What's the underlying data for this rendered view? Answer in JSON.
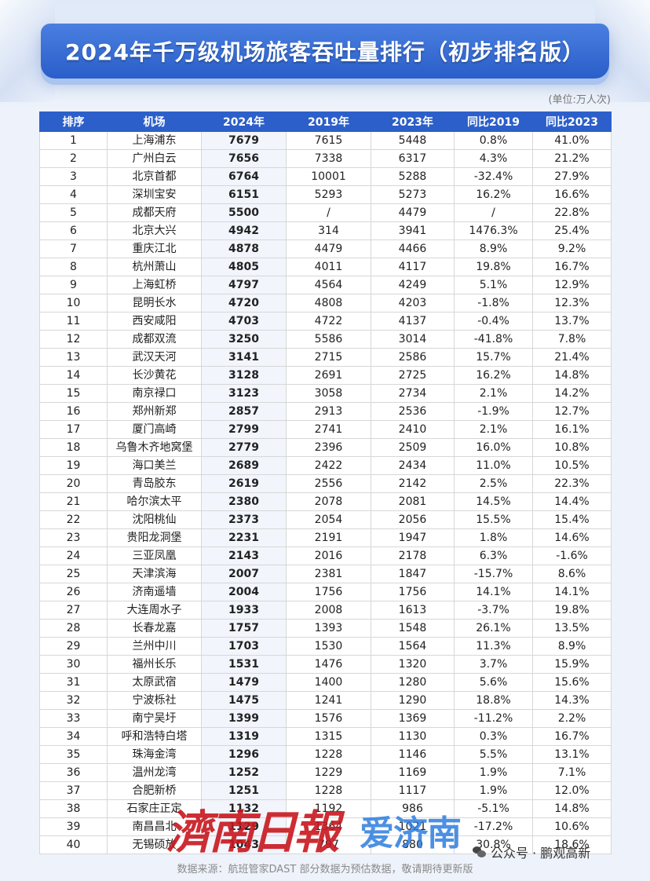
{
  "title": "2024年千万级机场旅客吞吐量排行（初步排名版）",
  "unit": "(单位:万人次)",
  "headers": [
    "排序",
    "机场",
    "2024年",
    "2019年",
    "2023年",
    "同比2019",
    "同比2023"
  ],
  "rows": [
    [
      "1",
      "上海浦东",
      "7679",
      "7615",
      "5448",
      "0.8%",
      "41.0%"
    ],
    [
      "2",
      "广州白云",
      "7656",
      "7338",
      "6317",
      "4.3%",
      "21.2%"
    ],
    [
      "3",
      "北京首都",
      "6764",
      "10001",
      "5288",
      "-32.4%",
      "27.9%"
    ],
    [
      "4",
      "深圳宝安",
      "6151",
      "5293",
      "5273",
      "16.2%",
      "16.6%"
    ],
    [
      "5",
      "成都天府",
      "5500",
      "/",
      "4479",
      "/",
      "22.8%"
    ],
    [
      "6",
      "北京大兴",
      "4942",
      "314",
      "3941",
      "1476.3%",
      "25.4%"
    ],
    [
      "7",
      "重庆江北",
      "4878",
      "4479",
      "4466",
      "8.9%",
      "9.2%"
    ],
    [
      "8",
      "杭州萧山",
      "4805",
      "4011",
      "4117",
      "19.8%",
      "16.7%"
    ],
    [
      "9",
      "上海虹桥",
      "4797",
      "4564",
      "4249",
      "5.1%",
      "12.9%"
    ],
    [
      "10",
      "昆明长水",
      "4720",
      "4808",
      "4203",
      "-1.8%",
      "12.3%"
    ],
    [
      "11",
      "西安咸阳",
      "4703",
      "4722",
      "4137",
      "-0.4%",
      "13.7%"
    ],
    [
      "12",
      "成都双流",
      "3250",
      "5586",
      "3014",
      "-41.8%",
      "7.8%"
    ],
    [
      "13",
      "武汉天河",
      "3141",
      "2715",
      "2586",
      "15.7%",
      "21.4%"
    ],
    [
      "14",
      "长沙黄花",
      "3128",
      "2691",
      "2725",
      "16.2%",
      "14.8%"
    ],
    [
      "15",
      "南京禄口",
      "3123",
      "3058",
      "2734",
      "2.1%",
      "14.2%"
    ],
    [
      "16",
      "郑州新郑",
      "2857",
      "2913",
      "2536",
      "-1.9%",
      "12.7%"
    ],
    [
      "17",
      "厦门高崎",
      "2799",
      "2741",
      "2410",
      "2.1%",
      "16.1%"
    ],
    [
      "18",
      "乌鲁木齐地窝堡",
      "2779",
      "2396",
      "2509",
      "16.0%",
      "10.8%"
    ],
    [
      "19",
      "海口美兰",
      "2689",
      "2422",
      "2434",
      "11.0%",
      "10.5%"
    ],
    [
      "20",
      "青岛胶东",
      "2619",
      "2556",
      "2142",
      "2.5%",
      "22.3%"
    ],
    [
      "21",
      "哈尔滨太平",
      "2380",
      "2078",
      "2081",
      "14.5%",
      "14.4%"
    ],
    [
      "22",
      "沈阳桃仙",
      "2373",
      "2054",
      "2056",
      "15.5%",
      "15.4%"
    ],
    [
      "23",
      "贵阳龙洞堡",
      "2231",
      "2191",
      "1947",
      "1.8%",
      "14.6%"
    ],
    [
      "24",
      "三亚凤凰",
      "2143",
      "2016",
      "2178",
      "6.3%",
      "-1.6%"
    ],
    [
      "25",
      "天津滨海",
      "2007",
      "2381",
      "1847",
      "-15.7%",
      "8.6%"
    ],
    [
      "26",
      "济南遥墙",
      "2004",
      "1756",
      "1756",
      "14.1%",
      "14.1%"
    ],
    [
      "27",
      "大连周水子",
      "1933",
      "2008",
      "1613",
      "-3.7%",
      "19.8%"
    ],
    [
      "28",
      "长春龙嘉",
      "1757",
      "1393",
      "1548",
      "26.1%",
      "13.5%"
    ],
    [
      "29",
      "兰州中川",
      "1703",
      "1530",
      "1564",
      "11.3%",
      "8.9%"
    ],
    [
      "30",
      "福州长乐",
      "1531",
      "1476",
      "1320",
      "3.7%",
      "15.9%"
    ],
    [
      "31",
      "太原武宿",
      "1479",
      "1400",
      "1280",
      "5.6%",
      "15.6%"
    ],
    [
      "32",
      "宁波栎社",
      "1475",
      "1241",
      "1290",
      "18.8%",
      "14.3%"
    ],
    [
      "33",
      "南宁吴圩",
      "1399",
      "1576",
      "1369",
      "-11.2%",
      "2.2%"
    ],
    [
      "34",
      "呼和浩特白塔",
      "1319",
      "1315",
      "1130",
      "0.3%",
      "16.7%"
    ],
    [
      "35",
      "珠海金湾",
      "1296",
      "1228",
      "1146",
      "5.5%",
      "13.1%"
    ],
    [
      "36",
      "温州龙湾",
      "1252",
      "1229",
      "1169",
      "1.9%",
      "7.1%"
    ],
    [
      "37",
      "合肥新桥",
      "1251",
      "1228",
      "1117",
      "1.9%",
      "12.0%"
    ],
    [
      "38",
      "石家庄正定",
      "1132",
      "1192",
      "986",
      "-5.1%",
      "14.8%"
    ],
    [
      "39",
      "南昌昌北",
      "1129",
      "1364",
      "1021",
      "-17.2%",
      "10.6%"
    ],
    [
      "40",
      "无锡硕放",
      "1043",
      "797",
      "880",
      "30.8%",
      "18.6%"
    ]
  ],
  "watermark": {
    "newspaper": "濟南日報",
    "app": "爱济南"
  },
  "wechat_account": "公众号 · 鹏观高新",
  "footer": "数据来源：航班管家DAST  部分数据为预估数据，敬请期待更新版"
}
